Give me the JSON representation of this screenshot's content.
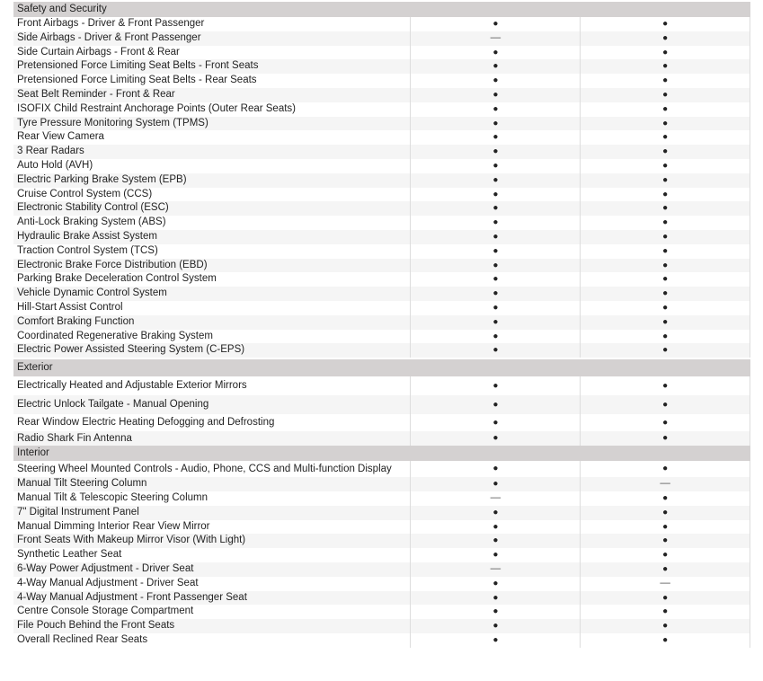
{
  "symbols": {
    "yes": "●",
    "no": "—"
  },
  "sections": [
    {
      "title": "Safety and Security",
      "rows": [
        [
          "Front Airbags - Driver & Front Passenger",
          "yes",
          "yes"
        ],
        [
          "Side Airbags - Driver & Front Passenger",
          "no",
          "yes"
        ],
        [
          "Side Curtain Airbags - Front & Rear",
          "yes",
          "yes"
        ],
        [
          "Pretensioned Force Limiting Seat Belts - Front Seats",
          "yes",
          "yes"
        ],
        [
          "Pretensioned Force Limiting Seat Belts - Rear Seats",
          "yes",
          "yes"
        ],
        [
          "Seat Belt Reminder - Front & Rear",
          "yes",
          "yes"
        ],
        [
          "ISOFIX Child Restraint Anchorage Points (Outer Rear Seats)",
          "yes",
          "yes"
        ],
        [
          "Tyre Pressure Monitoring System (TPMS)",
          "yes",
          "yes"
        ],
        [
          "Rear View Camera",
          "yes",
          "yes"
        ],
        [
          "3 Rear Radars",
          "yes",
          "yes"
        ],
        [
          "Auto Hold (AVH)",
          "yes",
          "yes"
        ],
        [
          "Electric Parking Brake System (EPB)",
          "yes",
          "yes"
        ],
        [
          "Cruise Control System (CCS)",
          "yes",
          "yes"
        ],
        [
          "Electronic Stability Control (ESC)",
          "yes",
          "yes"
        ],
        [
          "Anti-Lock Braking System (ABS)",
          "yes",
          "yes"
        ],
        [
          "Hydraulic Brake Assist System",
          "yes",
          "yes"
        ],
        [
          "Traction Control System (TCS)",
          "yes",
          "yes"
        ],
        [
          "Electronic Brake Force Distribution (EBD)",
          "yes",
          "yes"
        ],
        [
          "Parking Brake Deceleration Control System",
          "yes",
          "yes"
        ],
        [
          "Vehicle Dynamic Control System",
          "yes",
          "yes"
        ],
        [
          "Hill-Start Assist Control",
          "yes",
          "yes"
        ],
        [
          "Comfort Braking Function",
          "yes",
          "yes"
        ],
        [
          "Coordinated Regenerative Braking System",
          "yes",
          "yes"
        ],
        [
          "Electric Power Assisted Steering System (C-EPS)",
          "yes",
          "yes"
        ]
      ]
    },
    {
      "title": "Exterior",
      "rows": [
        [
          "Electrically Heated and Adjustable Exterior Mirrors",
          "yes",
          "yes"
        ],
        [
          "Electric Unlock Tailgate - Manual Opening",
          "yes",
          "yes"
        ],
        [
          "Rear Window Electric Heating Defogging and Defrosting",
          "yes",
          "yes"
        ],
        [
          "Radio Shark Fin Antenna",
          "yes",
          "yes"
        ]
      ]
    },
    {
      "title": "Interior",
      "rows": [
        [
          "Steering Wheel Mounted Controls - Audio, Phone, CCS and Multi-function Display",
          "yes",
          "yes"
        ],
        [
          "Manual Tilt Steering Column",
          "yes",
          "no"
        ],
        [
          "Manual Tilt & Telescopic Steering Column",
          "no",
          "yes"
        ],
        [
          "7\" Digital Instrument Panel",
          "yes",
          "yes"
        ],
        [
          "Manual Dimming Interior Rear View Mirror",
          "yes",
          "yes"
        ],
        [
          "Front Seats With Makeup Mirror Visor (With Light)",
          "yes",
          "yes"
        ],
        [
          "Synthetic Leather Seat",
          "yes",
          "yes"
        ],
        [
          "6-Way Power Adjustment - Driver Seat",
          "no",
          "yes"
        ],
        [
          "4-Way Manual Adjustment - Driver Seat",
          "yes",
          "no"
        ],
        [
          "4-Way Manual Adjustment - Front Passenger Seat",
          "yes",
          "yes"
        ],
        [
          "Centre Console Storage Compartment",
          "yes",
          "yes"
        ],
        [
          "File Pouch Behind the Front Seats",
          "yes",
          "yes"
        ],
        [
          "Overall Reclined Rear Seats",
          "yes",
          "yes"
        ]
      ]
    }
  ]
}
